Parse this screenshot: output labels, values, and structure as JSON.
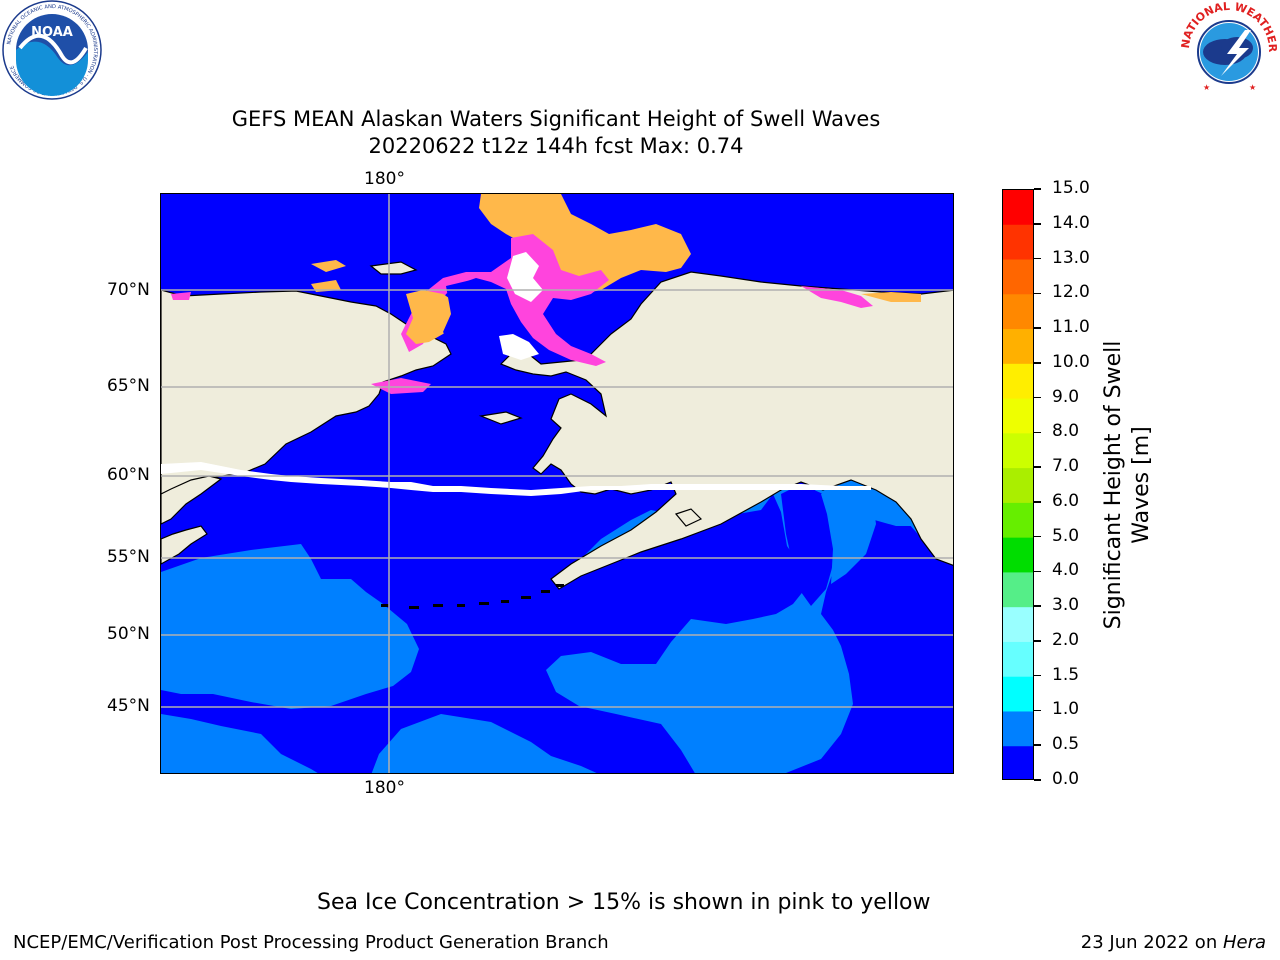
{
  "title_line1": "GEFS MEAN Alaskan Waters Significant Height of Swell Waves",
  "title_line2": "20220622 t12z 144h fcst   Max: 0.74",
  "logos": {
    "left_name": "noaa-logo",
    "left_text": "NOAA",
    "left_ring_text": "NATIONAL OCEANIC AND ATMOSPHERIC ADMINISTRATION · U.S. DEPARTMENT OF COMMERCE",
    "right_name": "nws-logo",
    "right_ring_text": "NATIONAL WEATHER SERVICE"
  },
  "map": {
    "lon_label_top": "180°",
    "lon_label_bottom": "180°",
    "lat_labels": [
      "70°N",
      "65°N",
      "60°N",
      "55°N",
      "50°N",
      "45°N"
    ],
    "colors": {
      "ocean_low": "#0000ff",
      "ocean_mid": "#0080ff",
      "land": "#efeddc",
      "ice_pink": "#ff44dd",
      "ice_orange": "#ffb84a",
      "grid": "#b0b0b0"
    }
  },
  "colorbar": {
    "label_line1": "Significant Height of Swell",
    "label_line2": "Waves [m]",
    "ticks": [
      "15.0",
      "14.0",
      "13.0",
      "12.0",
      "11.0",
      "10.0",
      "9.0",
      "8.0",
      "7.0",
      "6.0",
      "5.0",
      "4.0",
      "3.0",
      "2.0",
      "1.5",
      "1.0",
      "0.5",
      "0.0"
    ],
    "colors_top_to_bottom": [
      "#ff0000",
      "#ff3300",
      "#ff6600",
      "#ff8800",
      "#ffb000",
      "#ffee00",
      "#eeff00",
      "#ccff00",
      "#aaee00",
      "#66ee00",
      "#00dd00",
      "#55ee88",
      "#99ffff",
      "#66ffff",
      "#00ffff",
      "#0080ff",
      "#0000ff"
    ]
  },
  "ice_note": "Sea Ice Concentration > 15% is shown in pink to yellow",
  "footer_left": "NCEP/EMC/Verification Post Processing Product Generation Branch",
  "footer_date": "23 Jun 2022 on ",
  "footer_host": "Hera"
}
